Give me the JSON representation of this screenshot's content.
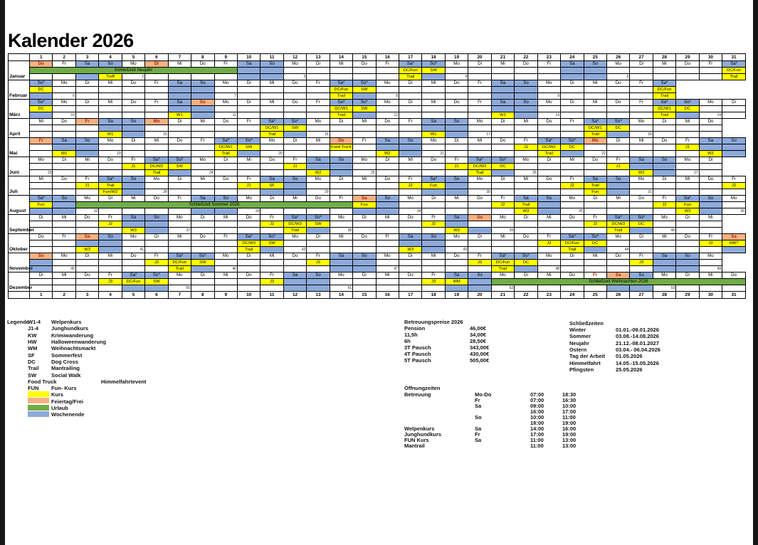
{
  "page": {
    "title": "Kalender 2026"
  },
  "colors": {
    "course_yellow": "#FFFF00",
    "holiday_orange": "#F4B183",
    "vacation_green": "#70AD47",
    "weekend_blue": "#8EAADB",
    "holiday_text_red": "#B22200"
  },
  "calendar": {
    "weekday_cycle": [
      "Mo",
      "Di",
      "Mi",
      "Do",
      "Fr",
      "Sa",
      "So"
    ],
    "day_column_count": 31,
    "months": [
      {
        "name": "Januar",
        "days": 31,
        "start": 3,
        "holidays": [
          1,
          6
        ],
        "red_days": [],
        "starred": [
          17,
          18,
          31
        ],
        "first_week": 2,
        "bars": [
          {
            "from": 1,
            "to": 9,
            "label": "Schließzeit Neujahr"
          }
        ],
        "e2": {
          "17": "DC/Fun",
          "18": "SW",
          "31": "DC/Fun"
        },
        "e3": {
          "4": "Treff",
          "17": "Trail",
          "31": "Trail"
        },
        "r2_white": []
      },
      {
        "name": "Februar",
        "days": 28,
        "start": 6,
        "holidays": [],
        "red_days": [],
        "starred": [
          1,
          14,
          15,
          28
        ],
        "first_week": 6,
        "bars": [],
        "e2": {
          "1": "DC",
          "14": "DC/Fun",
          "15": "SW",
          "28": "DC/Fun"
        },
        "e3": {
          "14": "Trail",
          "28": "Trail"
        },
        "r2_white": []
      },
      {
        "name": "März",
        "days": 31,
        "start": 6,
        "holidays": [
          8
        ],
        "red_days": [],
        "starred": [
          1,
          14,
          15,
          28,
          29
        ],
        "first_week": 10,
        "bars": [],
        "e2": {
          "1": "DC",
          "14": "DC/W1",
          "15": "SW",
          "28": "DC/W1",
          "29": "DC"
        },
        "e3": {
          "7": "W1",
          "14": "Trail",
          "21": "W1",
          "28": "Trail"
        },
        "r2_white": []
      },
      {
        "name": "April",
        "days": 30,
        "start": 2,
        "holidays": [
          3,
          6
        ],
        "red_days": [],
        "starred": [
          11,
          12,
          25,
          26
        ],
        "first_week": 15,
        "bars": [],
        "e2": {
          "11": "DC/W1",
          "12": "SW",
          "25": "DC/W1",
          "26": "DC"
        },
        "e3": {
          "4": "W1",
          "11": "Trail",
          "18": "W1",
          "25": "Trail"
        },
        "r2_white": []
      },
      {
        "name": "Mai",
        "days": 31,
        "start": 4,
        "holidays": [
          1,
          14,
          25
        ],
        "red_days": [],
        "starred": [
          9,
          10,
          23,
          24
        ],
        "first_week": 19,
        "bars": [],
        "e2": {
          "9": "DC/W1",
          "10": "SW",
          "14": "Food Truck",
          "22": "J1",
          "23": "DC/W2",
          "24": "DC",
          "29": "J1"
        },
        "e3": {
          "2": "W1",
          "9": "Trail",
          "16": "W2",
          "23": "Trail",
          "30": "W2"
        },
        "r2_white": []
      },
      {
        "name": "Juni",
        "days": 30,
        "start": 0,
        "holidays": [],
        "red_days": [],
        "starred": [
          6,
          7,
          20,
          21
        ],
        "first_week": 23,
        "bars": [],
        "e2": {
          "5": "J1",
          "6": "DC/W2",
          "7": "SW",
          "12": "J1",
          "19": "J1",
          "20": "DC/W2",
          "21": "DC",
          "26": "J1"
        },
        "e3": {
          "6": "Trail",
          "13": "W2",
          "20": "Trail",
          "27": "W2"
        },
        "r2_white": []
      },
      {
        "name": "Juli",
        "days": 31,
        "start": 2,
        "holidays": [],
        "red_days": [],
        "starred": [
          4,
          18
        ],
        "first_week": 28,
        "bars": [],
        "e2": {
          "3": "J1",
          "4": "Trail",
          "10": "J1",
          "11": "SF",
          "17": "J2",
          "18": "Fun",
          "24": "J2",
          "25": "Trail",
          "31": "J2"
        },
        "e3": {
          "4": "Fun/W2",
          "25": "Fun"
        },
        "r2_white": []
      },
      {
        "name": "August",
        "days": 31,
        "start": 5,
        "holidays": [
          15
        ],
        "red_days": [],
        "starred": [
          1,
          29
        ],
        "first_week": 32,
        "bars": [
          {
            "from": 3,
            "to": 14,
            "label": "Schließzeit Sommer 2026"
          }
        ],
        "e2": {
          "1": "Fun",
          "15": "Fun",
          "21": "J2",
          "22": "Trail",
          "28": "J2",
          "29": "Fun"
        },
        "e3": {
          "22": "W3",
          "29": "W3"
        },
        "r2_white": []
      },
      {
        "name": "September",
        "days": 30,
        "start": 1,
        "holidays": [
          20
        ],
        "red_days": [],
        "starred": [
          12,
          13,
          26,
          27
        ],
        "first_week": 37,
        "bars": [],
        "e2": {
          "4": "J2",
          "11": "J2",
          "12": "DC/W3",
          "13": "SW",
          "18": "J2",
          "25": "J2",
          "26": "DC/W3",
          "27": "DC"
        },
        "e3": {
          "5": "W3",
          "12": "Trail",
          "19": "W3",
          "26": "Trail"
        },
        "r2_white": [
          20
        ]
      },
      {
        "name": "Oktober",
        "days": 31,
        "start": 3,
        "holidays": [
          3,
          31
        ],
        "red_days": [],
        "starred": [
          10,
          11,
          24,
          25
        ],
        "first_week": 41,
        "bars": [],
        "e2": {
          "10": "DC/W3",
          "11": "SW",
          "23": "J3",
          "24": "DC/Fun",
          "25": "DC",
          "30": "J3",
          "31": "HW?"
        },
        "e3": {
          "3": "W3",
          "10": "Trail",
          "17": "W3",
          "24": "Trail"
        },
        "r2_white": []
      },
      {
        "name": "November",
        "days": 30,
        "start": 6,
        "holidays": [
          1
        ],
        "red_days": [],
        "starred": [
          7,
          8,
          21,
          22
        ],
        "first_week": 45,
        "bars": [],
        "e2": {
          "6": "J3",
          "7": "DC/Fun",
          "8": "SW",
          "13": "J3",
          "20": "J3",
          "21": "DC/Fun",
          "22": "DC",
          "27": "J3"
        },
        "e3": {
          "7": "Trail",
          "21": "Trail"
        },
        "r2_white": []
      },
      {
        "name": "Dezember",
        "days": 31,
        "start": 1,
        "holidays": [
          26
        ],
        "red_days": [
          25,
          26
        ],
        "starred": [
          5,
          6
        ],
        "first_week": 50,
        "bars": [
          {
            "from": 21,
            "to": 31,
            "label": "Schließzeit Weihnachten 2026"
          }
        ],
        "e2": {
          "4": "J3",
          "5": "DC/Fun",
          "6": "SW",
          "11": "J3",
          "18": "J3",
          "19": "WM"
        },
        "e3": {},
        "r2_white": []
      }
    ]
  },
  "legend": {
    "title": "Legende",
    "items": [
      {
        "abbr": "W1-4",
        "desc": "Welpenkurs",
        "extra": ""
      },
      {
        "abbr": "J1-4",
        "desc": "Junghundkurs",
        "extra": ""
      },
      {
        "abbr": "KW",
        "desc": "Krimiwanderung",
        "extra": ""
      },
      {
        "abbr": "HW",
        "desc": "Halloweenwanderung",
        "extra": ""
      },
      {
        "abbr": "WM",
        "desc": "Weihnachtsmarkt",
        "extra": ""
      },
      {
        "abbr": "SF",
        "desc": "Sommerfest",
        "extra": ""
      },
      {
        "abbr": "DC",
        "desc": "Dog Cross",
        "extra": ""
      },
      {
        "abbr": "Trail",
        "desc": "Mantrailing",
        "extra": ""
      },
      {
        "abbr": "SW",
        "desc": "Social Walk",
        "extra": ""
      },
      {
        "abbr": "Food Truck",
        "desc": "",
        "extra": "Himmelfahrtevent"
      },
      {
        "abbr": "FUN",
        "desc": "Fun- Kurs",
        "extra": ""
      }
    ],
    "swatches": [
      {
        "color": "#FFFF00",
        "label": "Kurs"
      },
      {
        "color": "#F4B183",
        "label": "Feiertag/Frei"
      },
      {
        "color": "#70AD47",
        "label": "Urlaub"
      },
      {
        "color": "#8EAADB",
        "label": "Wochenende"
      }
    ]
  },
  "prices": {
    "title": "Betreuungspreise 2026",
    "rows": [
      [
        "Pension",
        "46,00€"
      ],
      [
        "11,5h",
        "34,00€"
      ],
      [
        "6h",
        "28,50€"
      ],
      [
        "3T Pausch",
        "343,00€"
      ],
      [
        "4T Pausch",
        "430,00€"
      ],
      [
        "5T Pausch",
        "505,00€"
      ]
    ]
  },
  "closures": {
    "title": "Schließzeiten",
    "rows": [
      [
        "Winter",
        "01.01.-09.01.2026"
      ],
      [
        "Sommer",
        "03.08.-14.08.2026"
      ],
      [
        "Neujahr",
        "21.12.-08.01.2027"
      ],
      [
        "Ostern",
        "03.04.- 06.04.2026"
      ],
      [
        "Tag der Arbeit",
        "01.05.2026"
      ],
      [
        "Himmelfahrt",
        "14.05.-15.05.2026"
      ],
      [
        "Pfingsten",
        "25.05.2026"
      ]
    ]
  },
  "hours": {
    "title": "Öffnungzeiten",
    "rows": [
      [
        "Betreuung",
        "Mo-Do",
        "07:00",
        "18:30"
      ],
      [
        "",
        "Fr",
        "07:00",
        "16:30"
      ],
      [
        "",
        "Sa",
        "09:00",
        "10:00"
      ],
      [
        "",
        "",
        "16:00",
        "17:00"
      ],
      [
        "",
        "So",
        "10:00",
        "11:00"
      ],
      [
        "",
        "",
        "18:00",
        "19:00"
      ],
      [
        "Welpenkurs",
        "Sa",
        "14:00",
        "16:00"
      ],
      [
        "Junghundkurs",
        "Fr",
        "17:00",
        "19:00"
      ],
      [
        "FUN Kurs",
        "Sa",
        "11:00",
        "13:00"
      ],
      [
        "Mantrail",
        "",
        "11:00",
        "13:00"
      ]
    ]
  }
}
